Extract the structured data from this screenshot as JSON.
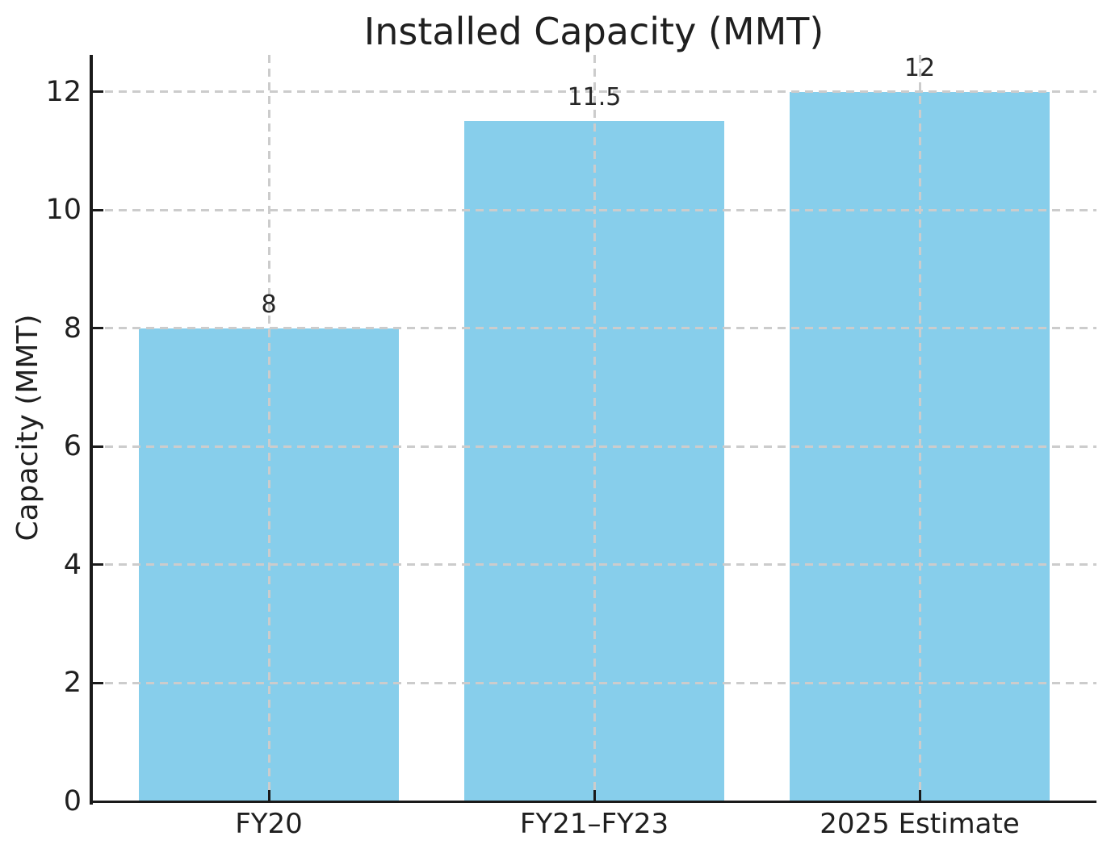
{
  "chart_data": {
    "type": "bar",
    "title": "Installed Capacity (MMT)",
    "xlabel": "",
    "ylabel": "Capacity (MMT)",
    "categories": [
      "FY20",
      "FY21–FY23",
      "2025 Estimate"
    ],
    "values": [
      8,
      11.5,
      12
    ],
    "value_labels": [
      "8",
      "11.5",
      "12"
    ],
    "yticks": [
      0,
      2,
      4,
      6,
      8,
      10,
      12
    ],
    "ytick_labels": [
      "0",
      "2",
      "4",
      "6",
      "8",
      "10",
      "12"
    ],
    "ylim": [
      0,
      12.6
    ],
    "grid": "both",
    "grid_style": "dashed",
    "grid_above_bars": true,
    "legend": "none",
    "bar_color": "#87CEEB",
    "grid_color": "#cccccc",
    "axis_color": "#1a1a1a",
    "text_color": "#1f1f1f",
    "background": "#ffffff"
  }
}
